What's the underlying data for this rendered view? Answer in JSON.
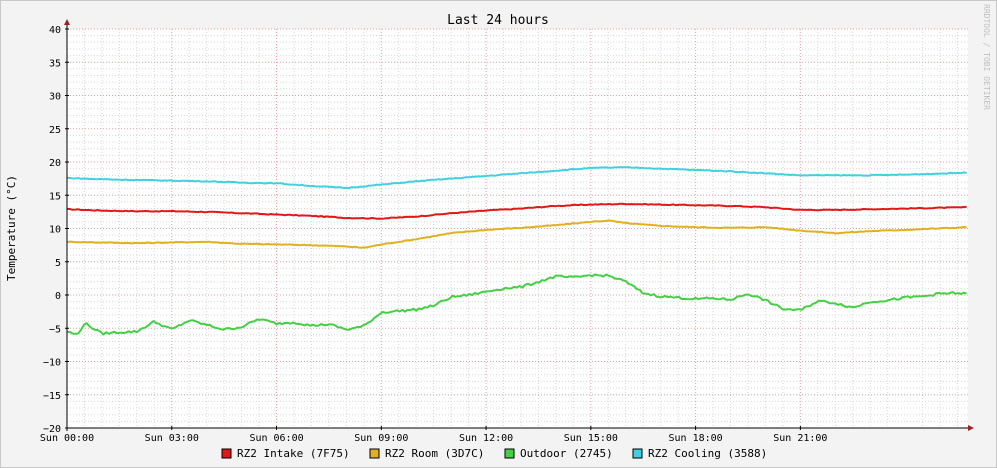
{
  "chart_data": {
    "type": "line",
    "title": "Last 24 hours",
    "ylabel": "Temperature (°C)",
    "watermark": "RRDTOOL / TOBI OETIKER",
    "ylim": [
      -20,
      40
    ],
    "y_ticks": [
      40,
      35,
      30,
      25,
      20,
      15,
      10,
      5,
      0,
      -5,
      -10,
      -15,
      -20
    ],
    "xlim": [
      0,
      25.8
    ],
    "x_ticks": [
      {
        "value": 0,
        "label": "Sun 00:00"
      },
      {
        "value": 3,
        "label": "Sun 03:00"
      },
      {
        "value": 6,
        "label": "Sun 06:00"
      },
      {
        "value": 9,
        "label": "Sun 09:00"
      },
      {
        "value": 12,
        "label": "Sun 12:00"
      },
      {
        "value": 15,
        "label": "Sun 15:00"
      },
      {
        "value": 18,
        "label": "Sun 18:00"
      },
      {
        "value": 21,
        "label": "Sun 21:00"
      }
    ],
    "grid": true,
    "legend": "bottom",
    "series": [
      {
        "name": "RZ2 Intake (7F75)",
        "color": "#e01818",
        "x": [
          0,
          1,
          2,
          3,
          4,
          5,
          6,
          7,
          8,
          9,
          10,
          11,
          12,
          13,
          14,
          15,
          16,
          17,
          18,
          19,
          20,
          21,
          22,
          23,
          24,
          25.8
        ],
        "values": [
          12.9,
          12.7,
          12.6,
          12.6,
          12.5,
          12.3,
          12.1,
          11.9,
          11.6,
          11.5,
          11.8,
          12.3,
          12.7,
          13.0,
          13.4,
          13.6,
          13.7,
          13.6,
          13.5,
          13.4,
          13.2,
          12.8,
          12.8,
          12.9,
          13.0,
          13.2
        ]
      },
      {
        "name": "RZ2 Room (3D7C)",
        "color": "#e0b020",
        "x": [
          0,
          1,
          2,
          3,
          4,
          5,
          6,
          7,
          8,
          8.5,
          9,
          10,
          11,
          12,
          13,
          14,
          15,
          15.5,
          16,
          17,
          18,
          19,
          20,
          21,
          22,
          23,
          24,
          25.8
        ],
        "values": [
          8.0,
          7.9,
          7.8,
          7.9,
          8.0,
          7.7,
          7.6,
          7.5,
          7.3,
          7.1,
          7.6,
          8.4,
          9.3,
          9.8,
          10.1,
          10.5,
          11.0,
          11.2,
          10.8,
          10.4,
          10.2,
          10.1,
          10.2,
          9.7,
          9.3,
          9.6,
          9.8,
          10.2
        ]
      },
      {
        "name": "Outdoor (2745)",
        "color": "#44d044",
        "x": [
          0,
          0.3,
          0.5,
          1,
          1.5,
          2,
          2.5,
          3,
          3.5,
          4,
          4.5,
          5,
          5.5,
          6,
          6.5,
          7,
          7.5,
          8,
          8.5,
          9,
          9.5,
          10,
          10.5,
          11,
          11.5,
          12,
          12.5,
          13,
          13.5,
          14,
          14.5,
          15,
          15.5,
          16,
          16.5,
          17,
          17.5,
          18,
          18.5,
          19,
          19.5,
          20,
          20.5,
          21,
          21.5,
          22,
          22.5,
          23,
          23.5,
          24,
          24.5,
          25,
          25.5,
          25.8
        ],
        "values": [
          -5.5,
          -6.0,
          -4.2,
          -5.8,
          -5.6,
          -5.5,
          -4.0,
          -5.2,
          -3.8,
          -4.5,
          -5.2,
          -4.8,
          -3.6,
          -4.3,
          -4.1,
          -4.6,
          -4.4,
          -5.2,
          -4.7,
          -2.6,
          -2.4,
          -2.2,
          -1.6,
          -0.3,
          0.0,
          0.5,
          1.0,
          1.2,
          2.0,
          2.8,
          2.6,
          3.0,
          2.9,
          2.0,
          0.3,
          -0.2,
          -0.4,
          -0.6,
          -0.5,
          -0.7,
          0.2,
          -0.8,
          -2.1,
          -2.3,
          -0.9,
          -1.2,
          -1.9,
          -1.0,
          -0.8,
          -0.4,
          -0.2,
          0.2,
          0.3,
          0.1
        ]
      },
      {
        "name": "RZ2 Cooling (3588)",
        "color": "#40d0e0",
        "x": [
          0,
          1,
          2,
          3,
          4,
          5,
          6,
          7,
          8,
          9,
          10,
          11,
          12,
          13,
          14,
          15,
          16,
          17,
          18,
          19,
          20,
          21,
          22,
          23,
          24,
          25.8
        ],
        "values": [
          17.6,
          17.4,
          17.3,
          17.2,
          17.1,
          16.9,
          16.8,
          16.4,
          16.1,
          16.6,
          17.1,
          17.5,
          17.9,
          18.3,
          18.7,
          19.1,
          19.2,
          19.0,
          18.8,
          18.6,
          18.3,
          18.0,
          18.0,
          18.0,
          18.1,
          18.4
        ]
      }
    ]
  }
}
